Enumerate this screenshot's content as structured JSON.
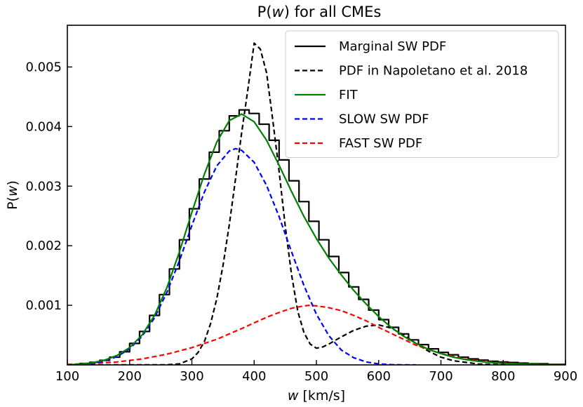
{
  "chart_data": {
    "type": "line",
    "title": "P(w) for all CMEs",
    "title_parts": {
      "prefix": "P(",
      "var": "w",
      "suffix": ") for all CMEs"
    },
    "xlabel": "w [km/s]",
    "xlabel_parts": {
      "var": "w",
      "rest": " [km/s]"
    },
    "ylabel": "P(w)",
    "ylabel_parts": {
      "prefix": "P(",
      "var": "w",
      "suffix": ")"
    },
    "xlim": [
      100,
      900
    ],
    "ylim": [
      0,
      0.0057
    ],
    "x_ticks": [
      {
        "value": 100,
        "label": "100"
      },
      {
        "value": 200,
        "label": "200"
      },
      {
        "value": 300,
        "label": "300"
      },
      {
        "value": 400,
        "label": "400"
      },
      {
        "value": 500,
        "label": "500"
      },
      {
        "value": 600,
        "label": "600"
      },
      {
        "value": 700,
        "label": "700"
      },
      {
        "value": 800,
        "label": "800"
      },
      {
        "value": 900,
        "label": "900"
      }
    ],
    "y_ticks": [
      {
        "value": 0.001,
        "label": "0.001"
      },
      {
        "value": 0.002,
        "label": "0.002"
      },
      {
        "value": 0.003,
        "label": "0.003"
      },
      {
        "value": 0.004,
        "label": "0.004"
      },
      {
        "value": 0.005,
        "label": "0.005"
      }
    ],
    "legend": {
      "position": "upper-right",
      "entries": [
        {
          "label": "Marginal SW PDF",
          "color": "#000000",
          "style": "solid",
          "series": "marginal"
        },
        {
          "label": "PDF in Napoletano et al. 2018",
          "color": "#000000",
          "style": "dashed",
          "series": "napoletano"
        },
        {
          "label": "FIT",
          "color": "#008000",
          "style": "solid",
          "series": "fit"
        },
        {
          "label": "SLOW SW PDF",
          "color": "#0000ff",
          "style": "dashed",
          "series": "slow"
        },
        {
          "label": "FAST SW PDF",
          "color": "#ff0000",
          "style": "dashed",
          "series": "fast"
        }
      ]
    },
    "series": [
      {
        "name": "Marginal SW PDF",
        "key": "marginal",
        "kind": "step",
        "bin_width": 16,
        "color": "#000000",
        "x": [
          128,
          144,
          160,
          176,
          192,
          208,
          224,
          240,
          256,
          272,
          288,
          304,
          320,
          336,
          352,
          368,
          384,
          400,
          416,
          432,
          448,
          464,
          480,
          496,
          512,
          528,
          544,
          560,
          576,
          592,
          608,
          624,
          640,
          656,
          672,
          688,
          704,
          720,
          736,
          752,
          768,
          784,
          800,
          816,
          832,
          848,
          864,
          880,
          896
        ],
        "values": [
          2.3e-05,
          4.2e-05,
          7.7e-05,
          0.00013,
          0.00022,
          0.00036,
          0.00056,
          0.00083,
          0.00118,
          0.00161,
          0.0021,
          0.00262,
          0.00312,
          0.00357,
          0.00393,
          0.00418,
          0.00428,
          0.00422,
          0.00404,
          0.00377,
          0.00344,
          0.00309,
          0.00274,
          0.00241,
          0.0021,
          0.00182,
          0.00155,
          0.00131,
          0.0011,
          0.00092,
          0.00076,
          0.00063,
          0.00052,
          0.00042,
          0.00034,
          0.00027,
          0.00021,
          0.00017,
          0.00013,
          0.0001,
          8e-05,
          6e-05,
          5e-05,
          4e-05,
          3e-05,
          2e-05,
          2e-05,
          1e-05,
          1e-05
        ]
      },
      {
        "name": "PDF in Napoletano et al. 2018",
        "key": "napoletano",
        "kind": "line",
        "color": "#000000",
        "dashed": true,
        "x": [
          100,
          260,
          280,
          300,
          310,
          320,
          330,
          340,
          350,
          360,
          370,
          380,
          390,
          400,
          410,
          420,
          430,
          440,
          450,
          460,
          470,
          480,
          490,
          500,
          510,
          520,
          540,
          560,
          580,
          600,
          620,
          640,
          660,
          680,
          700,
          720,
          760,
          800,
          850,
          900
        ],
        "values": [
          0,
          2e-06,
          1.8e-05,
          0.0001,
          0.00021,
          0.00039,
          0.00069,
          0.00111,
          0.00167,
          0.00235,
          0.00311,
          0.0039,
          0.00463,
          0.0054,
          0.0053,
          0.0049,
          0.0041,
          0.00325,
          0.00233,
          0.00152,
          0.0009,
          0.00054,
          0.00035,
          0.00028,
          0.0003,
          0.00035,
          0.00047,
          0.00058,
          0.00065,
          0.00067,
          0.00062,
          0.0005,
          0.00036,
          0.00023,
          0.00013,
          7e-05,
          1.5e-05,
          3e-06,
          0,
          0
        ]
      },
      {
        "name": "FIT",
        "key": "fit",
        "kind": "line",
        "color": "#008000",
        "x": [
          100,
          120,
          140,
          160,
          180,
          200,
          220,
          240,
          260,
          280,
          300,
          320,
          340,
          360,
          380,
          400,
          420,
          440,
          460,
          480,
          500,
          520,
          540,
          560,
          580,
          600,
          620,
          640,
          660,
          680,
          700,
          720,
          740,
          760,
          780,
          800,
          820,
          840,
          860,
          880,
          900
        ],
        "values": [
          2e-06,
          1.2e-05,
          3.5e-05,
          8e-05,
          0.00016,
          0.00029,
          0.0005,
          0.00083,
          0.0013,
          0.0019,
          0.00256,
          0.0032,
          0.00374,
          0.0041,
          0.00421,
          0.00408,
          0.00377,
          0.00335,
          0.00291,
          0.00249,
          0.00212,
          0.00179,
          0.00151,
          0.00125,
          0.00102,
          0.00081,
          0.00063,
          0.00048,
          0.00036,
          0.00026,
          0.00019,
          0.00013,
          9e-05,
          6e-05,
          4e-05,
          2.5e-05,
          1.6e-05,
          1e-05,
          6e-06,
          3e-06,
          2e-06
        ]
      },
      {
        "name": "SLOW SW PDF",
        "key": "slow",
        "kind": "line",
        "color": "#0000ff",
        "dashed": true,
        "x": [
          100,
          120,
          140,
          160,
          180,
          200,
          220,
          240,
          260,
          280,
          300,
          320,
          340,
          360,
          370,
          380,
          400,
          420,
          440,
          460,
          480,
          500,
          520,
          540,
          560,
          580,
          600,
          620,
          640,
          660
        ],
        "values": [
          2e-06,
          8e-06,
          2.5e-05,
          6.5e-05,
          0.00014,
          0.00027,
          0.00048,
          0.00079,
          0.00122,
          0.00175,
          0.00234,
          0.0029,
          0.00334,
          0.00359,
          0.00363,
          0.0036,
          0.0034,
          0.00301,
          0.00249,
          0.0019,
          0.00133,
          0.00085,
          0.00049,
          0.00025,
          0.00012,
          5e-05,
          1.7e-05,
          5e-06,
          1e-06,
          0
        ]
      },
      {
        "name": "FAST SW PDF",
        "key": "fast",
        "kind": "line",
        "color": "#ff0000",
        "dashed": true,
        "x": [
          100,
          140,
          180,
          220,
          260,
          300,
          340,
          380,
          420,
          440,
          460,
          480,
          490,
          500,
          520,
          540,
          560,
          580,
          600,
          620,
          640,
          660,
          700,
          740,
          780,
          820,
          860,
          900
        ],
        "values": [
          1e-05,
          2.2e-05,
          5e-05,
          0.0001,
          0.00018,
          0.00029,
          0.00043,
          0.00061,
          0.0008,
          0.00088,
          0.00095,
          0.00099,
          0.001,
          0.00099,
          0.00096,
          0.00091,
          0.00083,
          0.00074,
          0.00063,
          0.00053,
          0.00043,
          0.00033,
          0.00019,
          9.5e-05,
          4.5e-05,
          1.9e-05,
          8e-06,
          3e-06
        ]
      }
    ]
  }
}
